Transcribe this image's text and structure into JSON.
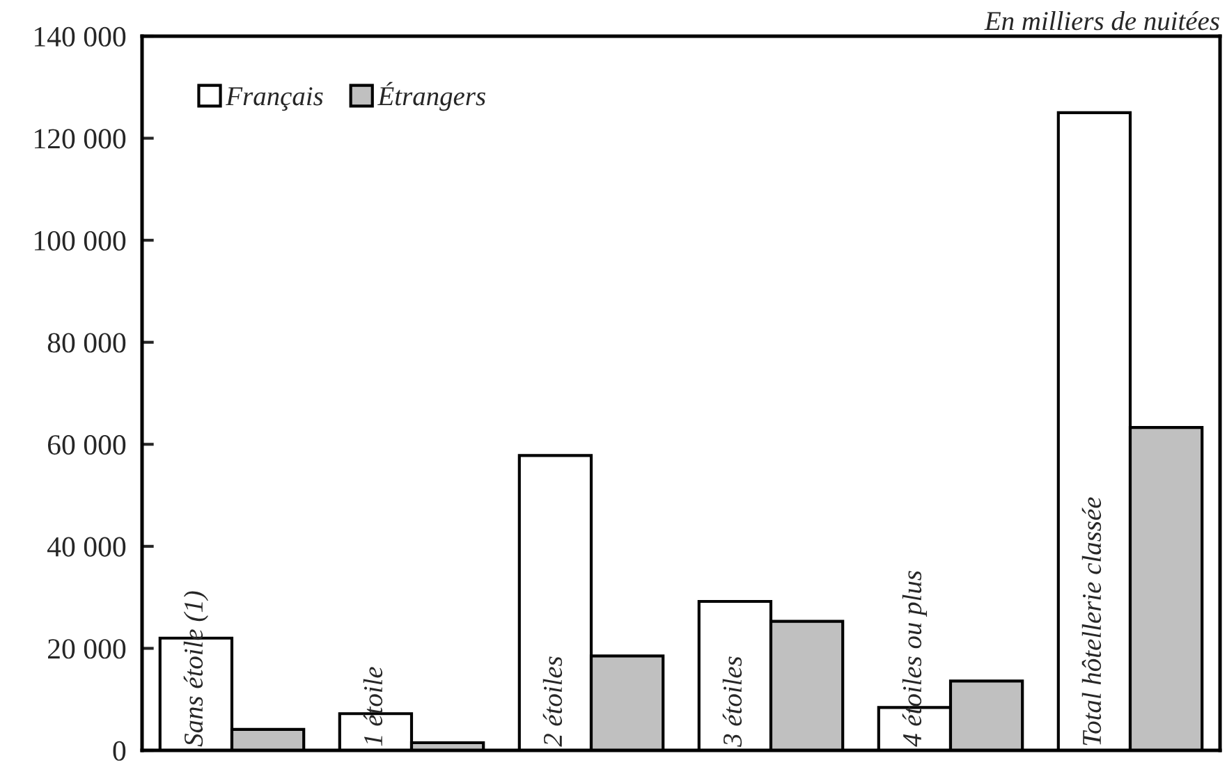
{
  "chart_data": {
    "type": "bar",
    "categories": [
      "Sans étoile (1)",
      "1 étoile",
      "2 étoiles",
      "3 étoiles",
      "4 étoiles ou plus",
      "Total hôtellerie classée"
    ],
    "series": [
      {
        "name": "Français",
        "color": "#ffffff",
        "values": [
          22000,
          7200,
          57800,
          29200,
          8400,
          125000
        ]
      },
      {
        "name": "Étrangers",
        "color": "#c0c0c0",
        "values": [
          4100,
          1500,
          18500,
          25300,
          13600,
          63300
        ]
      }
    ],
    "ylim": [
      0,
      140000
    ],
    "yticks": [
      {
        "value": 0,
        "label": "0"
      },
      {
        "value": 20000,
        "label": "20 000"
      },
      {
        "value": 40000,
        "label": "40 000"
      },
      {
        "value": 60000,
        "label": "60 000"
      },
      {
        "value": 80000,
        "label": "80 000"
      },
      {
        "value": 100000,
        "label": "100 000"
      },
      {
        "value": 120000,
        "label": "120 000"
      },
      {
        "value": 140000,
        "label": "140 000"
      }
    ],
    "annotations": [
      "En milliers de nuitées"
    ],
    "legend": "top left",
    "grid": false
  }
}
